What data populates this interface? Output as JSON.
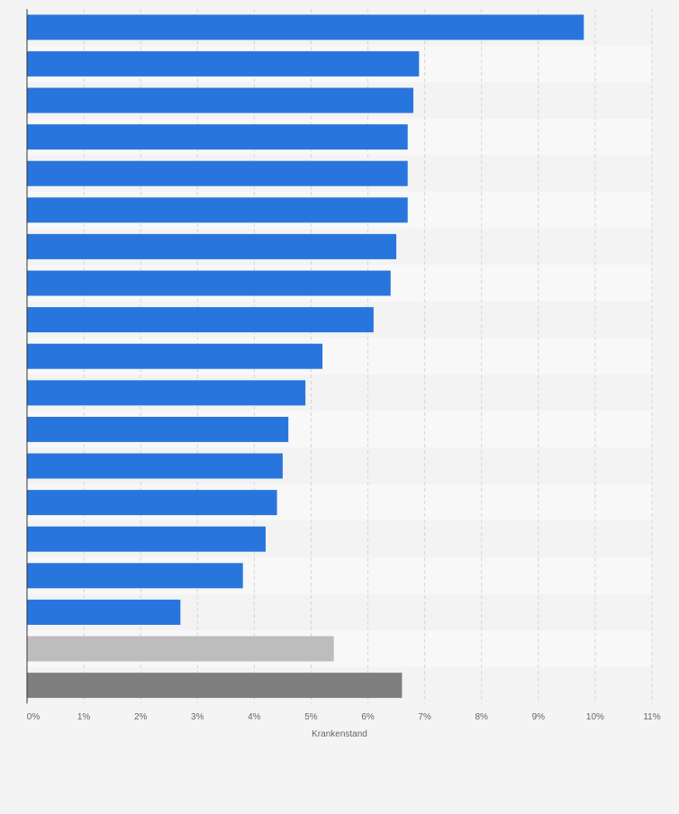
{
  "chart_data": {
    "type": "bar",
    "orientation": "horizontal",
    "title": "",
    "xlabel": "Krankenstand",
    "ylabel": "",
    "xlim": [
      0,
      11
    ],
    "x_ticks": [
      0,
      1,
      2,
      3,
      4,
      5,
      6,
      7,
      8,
      9,
      10,
      11
    ],
    "x_tick_labels": [
      "0%",
      "1%",
      "2%",
      "3%",
      "4%",
      "5%",
      "6%",
      "7%",
      "8%",
      "9%",
      "10%",
      "11%"
    ],
    "unit": "%",
    "grid": true,
    "legend": "none",
    "categories": [
      "",
      "",
      "",
      "",
      "",
      "",
      "",
      "",
      "",
      "",
      "",
      "",
      "",
      "",
      "",
      "",
      "",
      "",
      ""
    ],
    "values": [
      9.8,
      6.9,
      6.8,
      6.7,
      6.7,
      6.7,
      6.5,
      6.4,
      6.1,
      5.2,
      4.9,
      4.6,
      4.5,
      4.4,
      4.2,
      3.8,
      2.7,
      5.4,
      6.6
    ],
    "bar_colors": [
      "#2876dd",
      "#2876dd",
      "#2876dd",
      "#2876dd",
      "#2876dd",
      "#2876dd",
      "#2876dd",
      "#2876dd",
      "#2876dd",
      "#2876dd",
      "#2876dd",
      "#2876dd",
      "#2876dd",
      "#2876dd",
      "#2876dd",
      "#2876dd",
      "#2876dd",
      "#bdbdbd",
      "#7f7f7f"
    ]
  }
}
